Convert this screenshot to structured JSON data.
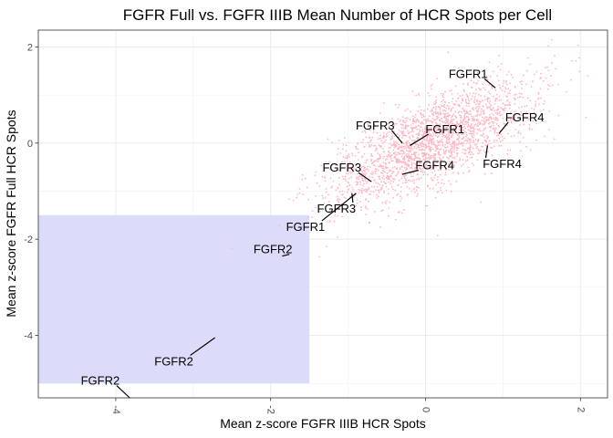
{
  "chart_data": {
    "type": "scatter",
    "title": "FGFR Full vs. FGFR IIIB Mean Number of HCR Spots per Cell",
    "xlabel": "Mean z-score FGFR IIIB HCR Spots",
    "ylabel": "Mean z-score FGFR Full HCR Spots",
    "xlim": [
      -5.0,
      2.35
    ],
    "ylim": [
      -5.3,
      2.35
    ],
    "xticks": [
      -4,
      -2,
      0,
      2
    ],
    "yticks": [
      -4,
      -2,
      0,
      2
    ],
    "xtick_labels": [
      "-4",
      "-2",
      "0",
      "2"
    ],
    "ytick_labels": [
      "-4",
      "-2",
      "0",
      "2"
    ],
    "grid": true,
    "point_color": "#ffb6c1",
    "highlight_color": "#dcdcfa",
    "highlight_region": {
      "x": [
        -5.0,
        -1.5
      ],
      "y": [
        -5.0,
        -1.5
      ]
    },
    "point_cloud": {
      "count": 2200,
      "center": [
        0.1,
        0.05
      ],
      "slope": 0.95,
      "spread_along": 0.85,
      "spread_across": 0.35
    },
    "labeled_points": [
      {
        "label": "FGFR2",
        "x": -3.82,
        "y": -5.3,
        "label_x": -4.2,
        "label_y": -4.93
      },
      {
        "label": "FGFR2",
        "x": -2.72,
        "y": -4.05,
        "label_x": -3.25,
        "label_y": -4.53
      },
      {
        "label": "FGFR2",
        "x": -1.85,
        "y": -2.35,
        "label_x": -1.97,
        "label_y": -2.2
      },
      {
        "label": "FGFR1",
        "x": -0.9,
        "y": -1.05,
        "label_x": -1.55,
        "label_y": -1.73
      },
      {
        "label": "FGFR3",
        "x": -0.95,
        "y": -1.05,
        "label_x": -1.15,
        "label_y": -1.35
      },
      {
        "label": "FGFR3",
        "x": -0.7,
        "y": -0.8,
        "label_x": -1.08,
        "label_y": -0.5
      },
      {
        "label": "FGFR4",
        "x": -0.3,
        "y": -0.65,
        "label_x": 0.12,
        "label_y": -0.45
      },
      {
        "label": "FGFR3",
        "x": -0.3,
        "y": 0.0,
        "label_x": -0.65,
        "label_y": 0.38
      },
      {
        "label": "FGFR1",
        "x": -0.2,
        "y": -0.05,
        "label_x": 0.25,
        "label_y": 0.3
      },
      {
        "label": "FGFR4",
        "x": 0.95,
        "y": 0.2,
        "label_x": 1.28,
        "label_y": 0.55
      },
      {
        "label": "FGFR4",
        "x": 0.8,
        "y": -0.05,
        "label_x": 0.99,
        "label_y": -0.42
      },
      {
        "label": "FGFR1",
        "x": 0.9,
        "y": 1.15,
        "label_x": 0.55,
        "label_y": 1.45
      }
    ]
  }
}
